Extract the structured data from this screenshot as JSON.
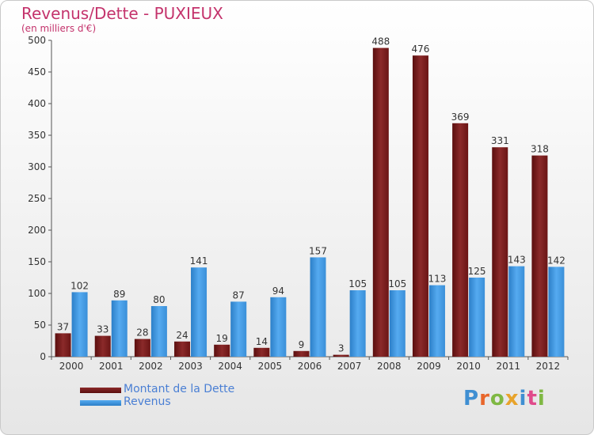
{
  "chart_data": {
    "type": "bar",
    "title": "Revenus/Dette - PUXIEUX",
    "subtitle": "(en milliers d'€)",
    "categories": [
      "2000",
      "2001",
      "2002",
      "2003",
      "2004",
      "2005",
      "2006",
      "2007",
      "2008",
      "2009",
      "2010",
      "2011",
      "2012"
    ],
    "series": [
      {
        "name": "Montant de la Dette",
        "color": "#7a1a1a",
        "values": [
          37,
          33,
          28,
          24,
          19,
          14,
          9,
          3,
          488,
          476,
          369,
          331,
          318
        ]
      },
      {
        "name": "Revenus",
        "color": "#3c95dd",
        "values": [
          102,
          89,
          80,
          141,
          87,
          94,
          157,
          105,
          105,
          113,
          125,
          143,
          142
        ]
      }
    ],
    "ylim": [
      0,
      500
    ],
    "yticks": [
      0,
      50,
      100,
      150,
      200,
      250,
      300,
      350,
      400,
      450,
      500
    ],
    "grid": false,
    "legend": "bottom-left"
  },
  "logo": {
    "text": "Proxiti"
  }
}
